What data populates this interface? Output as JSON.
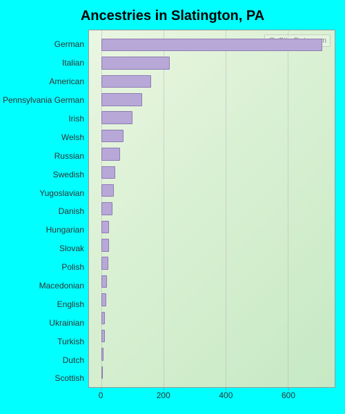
{
  "title": "Ancestries in Slatington, PA",
  "watermark": "City-Data.com",
  "chart": {
    "type": "bar-horizontal",
    "xlim": [
      -40,
      750
    ],
    "xticks": [
      0,
      200,
      400,
      600
    ],
    "bar_color": "#b8a8d8",
    "bar_border_color": "#8d7bb3",
    "grid_color": "rgba(180,180,180,0.5)",
    "plot_bg_gradient": [
      "#eaf6e2",
      "#d9f0d2",
      "#c6e9c4"
    ],
    "page_bg": "#00ffff",
    "title_fontsize": 20,
    "label_fontsize": 12,
    "categories": [
      {
        "label": "German",
        "value": 710
      },
      {
        "label": "Italian",
        "value": 220
      },
      {
        "label": "American",
        "value": 160
      },
      {
        "label": "Pennsylvania German",
        "value": 130
      },
      {
        "label": "Irish",
        "value": 100
      },
      {
        "label": "Welsh",
        "value": 70
      },
      {
        "label": "Russian",
        "value": 60
      },
      {
        "label": "Swedish",
        "value": 45
      },
      {
        "label": "Yugoslavian",
        "value": 40
      },
      {
        "label": "Danish",
        "value": 35
      },
      {
        "label": "Hungarian",
        "value": 25
      },
      {
        "label": "Slovak",
        "value": 25
      },
      {
        "label": "Polish",
        "value": 22
      },
      {
        "label": "Macedonian",
        "value": 18
      },
      {
        "label": "English",
        "value": 15
      },
      {
        "label": "Ukrainian",
        "value": 12
      },
      {
        "label": "Turkish",
        "value": 10
      },
      {
        "label": "Dutch",
        "value": 6
      },
      {
        "label": "Scottish",
        "value": 4
      }
    ]
  }
}
